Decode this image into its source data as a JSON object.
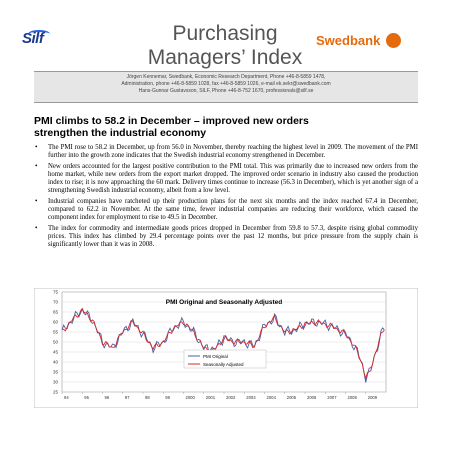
{
  "header": {
    "left_logo": "Silf",
    "title_line1": "Purchasing",
    "title_line2": "Managers’ Index",
    "right_logo": "Swedbank",
    "contact_lines": [
      "Jörgen Kennemar, Swedbank, Economic Research Department, Phone +46-8-5859 1478,",
      "Administration, phone +46-8-5859 1028, fax +46-8-5859 1026, e-mail ek.sekr@swedbank.com",
      "Hans-Gunnar Gustavsson, SILF, Phone +46-8-752 1670, professionals@silf.se"
    ]
  },
  "headline": {
    "line1": "PMI climbs to 58.2 in December – improved new orders",
    "line2": "strengthen the industrial economy"
  },
  "bullets": [
    "The PMI rose to 58.2 in December, up from 56.0 in November, thereby reaching the highest level in 2009. The movement of the PMI further into the growth zone indicates that the Swedish industrial economy strengthened in December.",
    "New orders accounted for the largest positive contribution to the PMI total. This was primarily due to increased new orders from the home market, while new orders from the export market dropped. The improved order scenario in industry also caused the production index to rise; it is now approaching the 60 mark. Delivery times continue to increase (56.3 in December), which is yet another sign of a strengthening Swedish industrial economy, albeit from a low level.",
    "Industrial companies have ratcheted up their production plans for the next six months and the index reached 67.4 in December, compared to 62.2 in November. At the same time, fewer industrial companies are reducing their workforce, which caused the component index for employment to rise to 49.5 in December.",
    "The index for commodity and intermediate goods prices dropped in December from 59.8 to 57.3, despite rising global commodity prices. This index has climbed by 29.4 percentage points over the past 12 months, but price pressure from the supply chain is significantly lower than it was in 2008."
  ],
  "chart_data": {
    "type": "line",
    "title": "PMI Original and Seasonally Adjusted",
    "ylim": [
      25,
      75
    ],
    "yticks": [
      25,
      30,
      35,
      40,
      45,
      50,
      55,
      60,
      65,
      70,
      75
    ],
    "xlabels": [
      "94",
      "95",
      "96",
      "97",
      "98",
      "99",
      "2000",
      "2001",
      "2002",
      "2003",
      "2004",
      "2005",
      "2006",
      "2007",
      "2008",
      "2009"
    ],
    "xrange": [
      1994,
      2010
    ],
    "grid": true,
    "legend_position": "bottom-center",
    "key_years": [
      1994,
      1994.5,
      1995,
      1995.5,
      1996,
      1996.5,
      1997,
      1997.5,
      1998,
      1998.5,
      1999,
      1999.5,
      2000,
      2000.5,
      2001,
      2001.5,
      2002,
      2002.5,
      2003,
      2003.5,
      2004,
      2004.5,
      2005,
      2005.5,
      2006,
      2006.5,
      2007,
      2007.5,
      2008,
      2008.3,
      2008.6,
      2008.85,
      2009.0,
      2009.2,
      2009.4,
      2009.6,
      2009.8,
      2009.95
    ],
    "key_values": [
      55,
      61,
      66,
      61,
      50,
      47,
      55,
      60,
      54,
      47,
      50,
      57,
      60,
      55,
      47,
      46,
      52,
      50,
      50,
      48,
      58,
      62,
      55,
      56,
      59,
      60,
      59,
      57,
      54,
      50,
      45,
      38,
      32,
      35,
      42,
      48,
      55,
      58
    ],
    "series": [
      {
        "name": "PMI Original",
        "color": "#4b5fa6"
      },
      {
        "name": "Seasonally Adjusted",
        "color": "#d42a2a"
      }
    ]
  }
}
